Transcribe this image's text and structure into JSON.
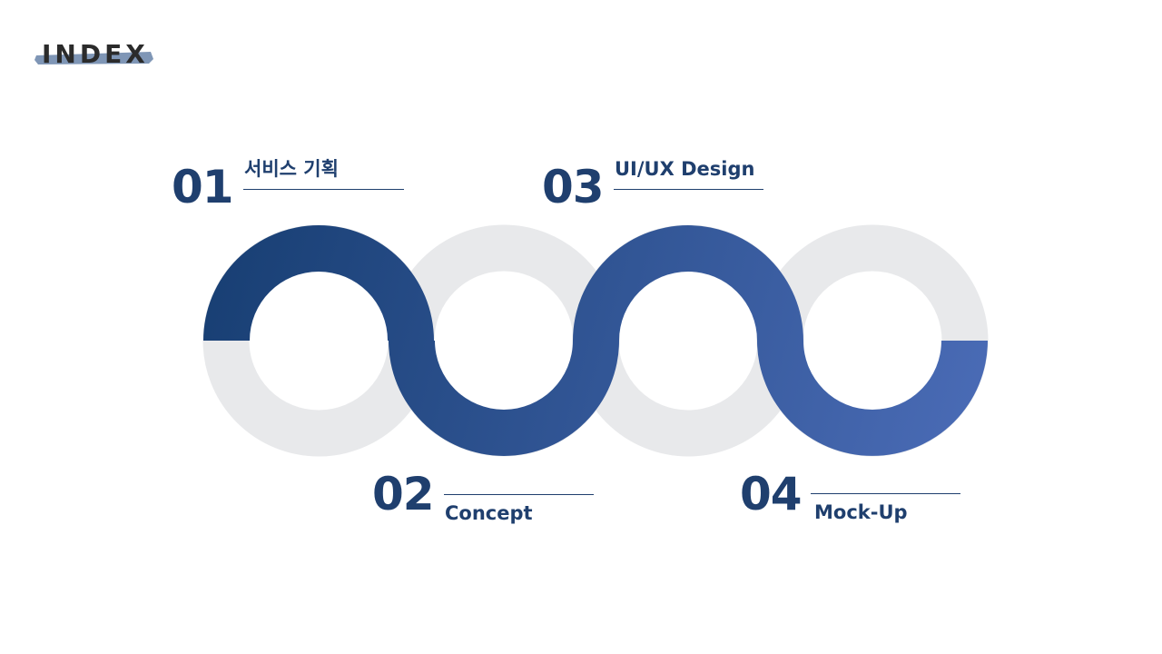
{
  "header": {
    "title": "INDEX"
  },
  "colors": {
    "accent_dark": "#173e72",
    "accent_light": "#4b6cb7",
    "ring_gray": "#e8e9eb",
    "text_navy": "#1f3f6e",
    "brush": "#7f96b6"
  },
  "index_items": [
    {
      "number": "01",
      "label": "서비스 기획"
    },
    {
      "number": "02",
      "label": "Concept"
    },
    {
      "number": "03",
      "label": "UI/UX Design"
    },
    {
      "number": "04",
      "label": "Mock-Up"
    }
  ]
}
